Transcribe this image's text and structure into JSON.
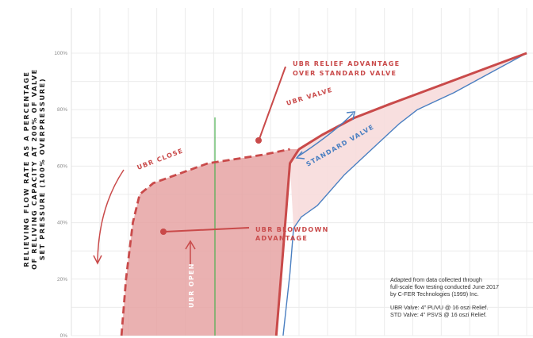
{
  "chart_data": {
    "type": "line",
    "ylabel_lines": [
      "RELIEVING FLOW RATE AS A PERCENTAGE",
      "OF RELIVING CAPACITY AT 200% OF VALVE",
      "SET PRESSURE (100% OVERPRESSURE)"
    ],
    "y_ticks": [
      "0%",
      "20%",
      "40%",
      "60%",
      "80%",
      "100%"
    ],
    "ylim": [
      0,
      100
    ],
    "grid": true,
    "series": [
      {
        "name": "UBR VALVE",
        "color": "#c94a4a",
        "points": [
          [
            45,
            0
          ],
          [
            46.5,
            30
          ],
          [
            48,
            61
          ],
          [
            50,
            66
          ],
          [
            55,
            71
          ],
          [
            62,
            77
          ],
          [
            70,
            82
          ],
          [
            80,
            88
          ],
          [
            90,
            94
          ],
          [
            100,
            100
          ]
        ]
      },
      {
        "name": "STANDARD VALVE",
        "color": "#4a7fc1",
        "points": [
          [
            46.5,
            0
          ],
          [
            48,
            22
          ],
          [
            48.8,
            38
          ],
          [
            50.5,
            42
          ],
          [
            54,
            46
          ],
          [
            60,
            57
          ],
          [
            66,
            66
          ],
          [
            72,
            75
          ],
          [
            76,
            80
          ],
          [
            84,
            86
          ],
          [
            92,
            93
          ],
          [
            100,
            100
          ]
        ]
      },
      {
        "name": "UBR CLOSE",
        "color": "#c94a4a",
        "style": "dashed",
        "points": [
          [
            11,
            0
          ],
          [
            12,
            20
          ],
          [
            13.5,
            40
          ],
          [
            15,
            50
          ],
          [
            18,
            54
          ],
          [
            30,
            61
          ],
          [
            42,
            64
          ],
          [
            48,
            66
          ]
        ]
      }
    ],
    "annotations": {
      "ubr_valve": "UBR VALVE",
      "standard_valve": "STANDARD VALVE",
      "ubr_close": "UBR CLOSE",
      "ubr_open": "UBR OPEN",
      "relief_advantage_line1": "UBR RELIEF ADVANTAGE",
      "relief_advantage_line2": "OVER STANDARD VALVE",
      "blowdown_advantage_line1": "UBR BLOWDOWN",
      "blowdown_advantage_line2": "ADVANTAGE"
    },
    "notes": [
      "Adapted from data collected through",
      "full-scale flow testing conducted June 2017",
      "by C-FER Technologies (1999) Inc.",
      "",
      "UBR Valve: 4” PUVU @ 16 oszi Relief.",
      "STD Valve: 4” PSVS @ 16 oszi Relief."
    ],
    "colors": {
      "ubr": "#c94a4a",
      "standard": "#4a7fc1",
      "set_line": "#4caf50",
      "blowdown_fill": "#e6a3a3",
      "relief_fill": "#f7dcdc"
    }
  }
}
